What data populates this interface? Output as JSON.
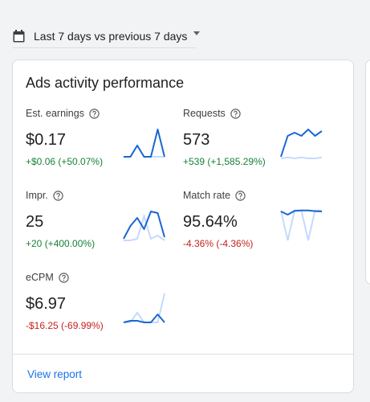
{
  "date_range": {
    "label": "Last 7 days vs previous 7 days",
    "calendar_icon": "calendar-icon",
    "dropdown_icon": "caret-down-icon"
  },
  "card": {
    "title": "Ads activity performance",
    "view_report_label": "View report",
    "help_icon": "help-circle-icon",
    "colors": {
      "current_line": "#1967d2",
      "previous_line": "#c6dafc",
      "positive": "#188038",
      "negative": "#c5221f",
      "link": "#1a73e8"
    },
    "metrics": [
      {
        "id": "earnings",
        "label": "Est. earnings",
        "value": "$0.17",
        "change": "+$0.06 (+50.07%)",
        "trend": "up",
        "sparkline": {
          "current": [
            0.1,
            0.1,
            0.45,
            0.1,
            0.1,
            0.95,
            0.1
          ],
          "previous": [
            0.1,
            0.1,
            0.45,
            0.1,
            0.1,
            0.1,
            0.1
          ]
        }
      },
      {
        "id": "requests",
        "label": "Requests",
        "value": "573",
        "change": "+539 (+1,585.29%)",
        "trend": "up",
        "sparkline": {
          "current": [
            0.1,
            0.75,
            0.85,
            0.75,
            0.95,
            0.75,
            0.9
          ],
          "previous": [
            0.05,
            0.08,
            0.05,
            0.08,
            0.05,
            0.05,
            0.08
          ]
        }
      },
      {
        "id": "impressions",
        "label": "Impr.",
        "value": "25",
        "change": "+20 (+400.00%)",
        "trend": "up",
        "sparkline": {
          "current": [
            0.1,
            0.5,
            0.75,
            0.4,
            0.95,
            0.9,
            0.15
          ],
          "previous": [
            0.05,
            0.05,
            0.1,
            0.8,
            0.1,
            0.2,
            0.05
          ]
        }
      },
      {
        "id": "match_rate",
        "label": "Match rate",
        "value": "95.64%",
        "change": "-4.36% (-4.36%)",
        "trend": "down",
        "sparkline": {
          "current": [
            0.95,
            0.85,
            0.97,
            0.98,
            0.98,
            0.96,
            0.95
          ],
          "previous": [
            0.98,
            0.05,
            0.98,
            0.98,
            0.05,
            0.98,
            0.98
          ]
        }
      },
      {
        "id": "ecpm",
        "label": "eCPM",
        "value": "$6.97",
        "change": "-$16.25 (-69.99%)",
        "trend": "down",
        "sparkline": {
          "current": [
            0.05,
            0.1,
            0.1,
            0.05,
            0.05,
            0.3,
            0.05
          ],
          "previous": [
            0.05,
            0.05,
            0.35,
            0.05,
            0.05,
            0.05,
            0.95
          ]
        }
      }
    ]
  }
}
